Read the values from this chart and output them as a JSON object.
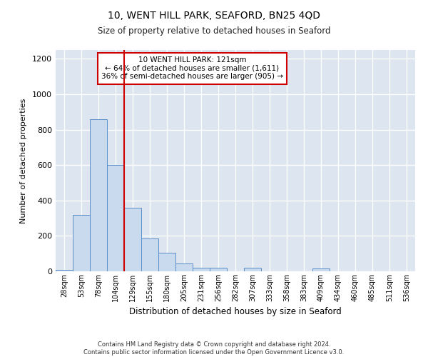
{
  "title1": "10, WENT HILL PARK, SEAFORD, BN25 4QD",
  "title2": "Size of property relative to detached houses in Seaford",
  "xlabel": "Distribution of detached houses by size in Seaford",
  "ylabel": "Number of detached properties",
  "bar_labels": [
    "28sqm",
    "53sqm",
    "78sqm",
    "104sqm",
    "129sqm",
    "155sqm",
    "180sqm",
    "205sqm",
    "231sqm",
    "256sqm",
    "282sqm",
    "307sqm",
    "333sqm",
    "358sqm",
    "383sqm",
    "409sqm",
    "434sqm",
    "460sqm",
    "485sqm",
    "511sqm",
    "536sqm"
  ],
  "bar_values": [
    10,
    320,
    860,
    600,
    360,
    185,
    105,
    45,
    20,
    20,
    0,
    20,
    0,
    0,
    0,
    15,
    0,
    0,
    0,
    0,
    0
  ],
  "bar_color": "#c9d9ee",
  "bar_edge_color": "#5b8fc9",
  "bg_color": "#dde6f0",
  "vline_index": 4,
  "property_line_label": "10 WENT HILL PARK: 121sqm",
  "annotation_line1": "← 64% of detached houses are smaller (1,611)",
  "annotation_line2": "36% of semi-detached houses are larger (905) →",
  "annotation_box_color": "#ffffff",
  "annotation_border_color": "#cc0000",
  "vline_color": "#cc0000",
  "ylim": [
    0,
    1250
  ],
  "yticks": [
    0,
    200,
    400,
    600,
    800,
    1000,
    1200
  ],
  "footer1": "Contains HM Land Registry data © Crown copyright and database right 2024.",
  "footer2": "Contains public sector information licensed under the Open Government Licence v3.0."
}
